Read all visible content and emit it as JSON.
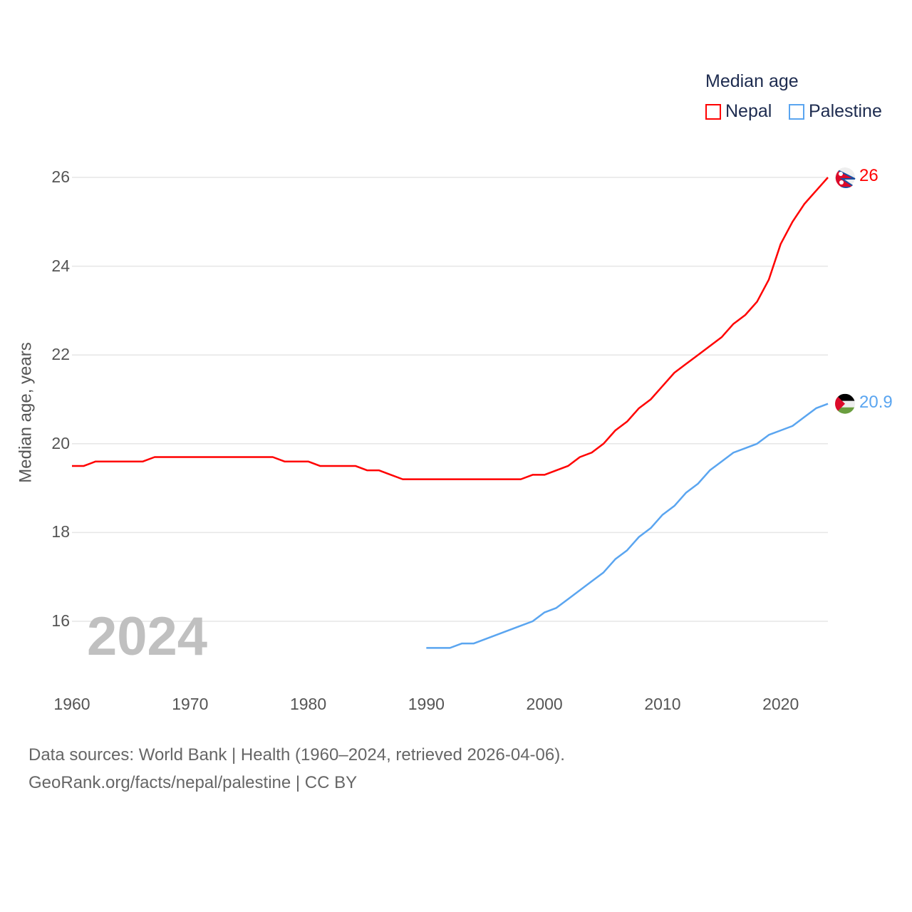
{
  "chart_data": {
    "type": "line",
    "title": "Median age",
    "ylabel": "Median age, years",
    "xlabel": "",
    "xlim": [
      1960,
      2024
    ],
    "ylim": [
      15,
      26.5
    ],
    "yticks": [
      "16",
      "18",
      "20",
      "22",
      "24",
      "26"
    ],
    "xticks": [
      "1960",
      "1970",
      "1980",
      "1990",
      "2000",
      "2010",
      "2020"
    ],
    "grid": true,
    "legend_position": "top-right",
    "year_watermark": "2024",
    "series": [
      {
        "name": "Nepal",
        "color": "#ff0000",
        "start_year": 1960,
        "end_label": "26",
        "values": [
          19.5,
          19.5,
          19.6,
          19.6,
          19.6,
          19.6,
          19.6,
          19.7,
          19.7,
          19.7,
          19.7,
          19.7,
          19.7,
          19.7,
          19.7,
          19.7,
          19.7,
          19.7,
          19.6,
          19.6,
          19.6,
          19.5,
          19.5,
          19.5,
          19.5,
          19.4,
          19.4,
          19.3,
          19.2,
          19.2,
          19.2,
          19.2,
          19.2,
          19.2,
          19.2,
          19.2,
          19.2,
          19.2,
          19.2,
          19.3,
          19.3,
          19.4,
          19.5,
          19.7,
          19.8,
          20.0,
          20.3,
          20.5,
          20.8,
          21.0,
          21.3,
          21.6,
          21.8,
          22.0,
          22.2,
          22.4,
          22.7,
          22.9,
          23.2,
          23.7,
          24.5,
          25.0,
          25.4,
          25.7,
          26.0
        ]
      },
      {
        "name": "Palestine",
        "color": "#5aa5f0",
        "start_year": 1990,
        "end_label": "20.9",
        "values": [
          15.4,
          15.4,
          15.4,
          15.5,
          15.5,
          15.6,
          15.7,
          15.8,
          15.9,
          16.0,
          16.2,
          16.3,
          16.5,
          16.7,
          16.9,
          17.1,
          17.4,
          17.6,
          17.9,
          18.1,
          18.4,
          18.6,
          18.9,
          19.1,
          19.4,
          19.6,
          19.8,
          19.9,
          20.0,
          20.2,
          20.3,
          20.4,
          20.6,
          20.8,
          20.9
        ]
      }
    ]
  },
  "footer": {
    "line1": "Data sources: World Bank | Health (1960–2024, retrieved 2026-04-06).",
    "line2": "GeoRank.org/facts/nepal/palestine | CC BY"
  }
}
